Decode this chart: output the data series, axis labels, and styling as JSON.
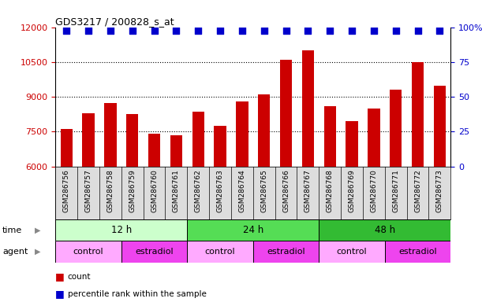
{
  "title": "GDS3217 / 200828_s_at",
  "samples": [
    "GSM286756",
    "GSM286757",
    "GSM286758",
    "GSM286759",
    "GSM286760",
    "GSM286761",
    "GSM286762",
    "GSM286763",
    "GSM286764",
    "GSM286765",
    "GSM286766",
    "GSM286767",
    "GSM286768",
    "GSM286769",
    "GSM286770",
    "GSM286771",
    "GSM286772",
    "GSM286773"
  ],
  "counts": [
    7600,
    8300,
    8750,
    8250,
    7400,
    7350,
    8350,
    7750,
    8800,
    9100,
    10600,
    11000,
    8600,
    7950,
    8500,
    9300,
    10500,
    9500
  ],
  "bar_color": "#cc0000",
  "dot_color": "#0000cc",
  "ylim_left": [
    6000,
    12000
  ],
  "ylim_right": [
    0,
    100
  ],
  "yticks_left": [
    6000,
    7500,
    9000,
    10500,
    12000
  ],
  "yticks_right": [
    0,
    25,
    50,
    75,
    100
  ],
  "ytick_labels_right": [
    "0",
    "25",
    "50",
    "75",
    "100%"
  ],
  "grid_values": [
    7500,
    9000,
    10500
  ],
  "time_groups": [
    {
      "label": "12 h",
      "start": 0,
      "end": 6,
      "color": "#ccffcc"
    },
    {
      "label": "24 h",
      "start": 6,
      "end": 12,
      "color": "#55dd55"
    },
    {
      "label": "48 h",
      "start": 12,
      "end": 18,
      "color": "#33bb33"
    }
  ],
  "agent_groups": [
    {
      "label": "control",
      "start": 0,
      "end": 3,
      "color": "#ffaaff"
    },
    {
      "label": "estradiol",
      "start": 3,
      "end": 6,
      "color": "#ee44ee"
    },
    {
      "label": "control",
      "start": 6,
      "end": 9,
      "color": "#ffaaff"
    },
    {
      "label": "estradiol",
      "start": 9,
      "end": 12,
      "color": "#ee44ee"
    },
    {
      "label": "control",
      "start": 12,
      "end": 15,
      "color": "#ffaaff"
    },
    {
      "label": "estradiol",
      "start": 15,
      "end": 18,
      "color": "#ee44ee"
    }
  ],
  "time_row_label": "time",
  "agent_row_label": "agent",
  "legend_count_label": "count",
  "legend_pct_label": "percentile rank within the sample",
  "bar_width": 0.55,
  "dot_size": 28,
  "sample_label_bg": "#dddddd",
  "fig_bg": "#ffffff",
  "arrow_color": "#888888"
}
